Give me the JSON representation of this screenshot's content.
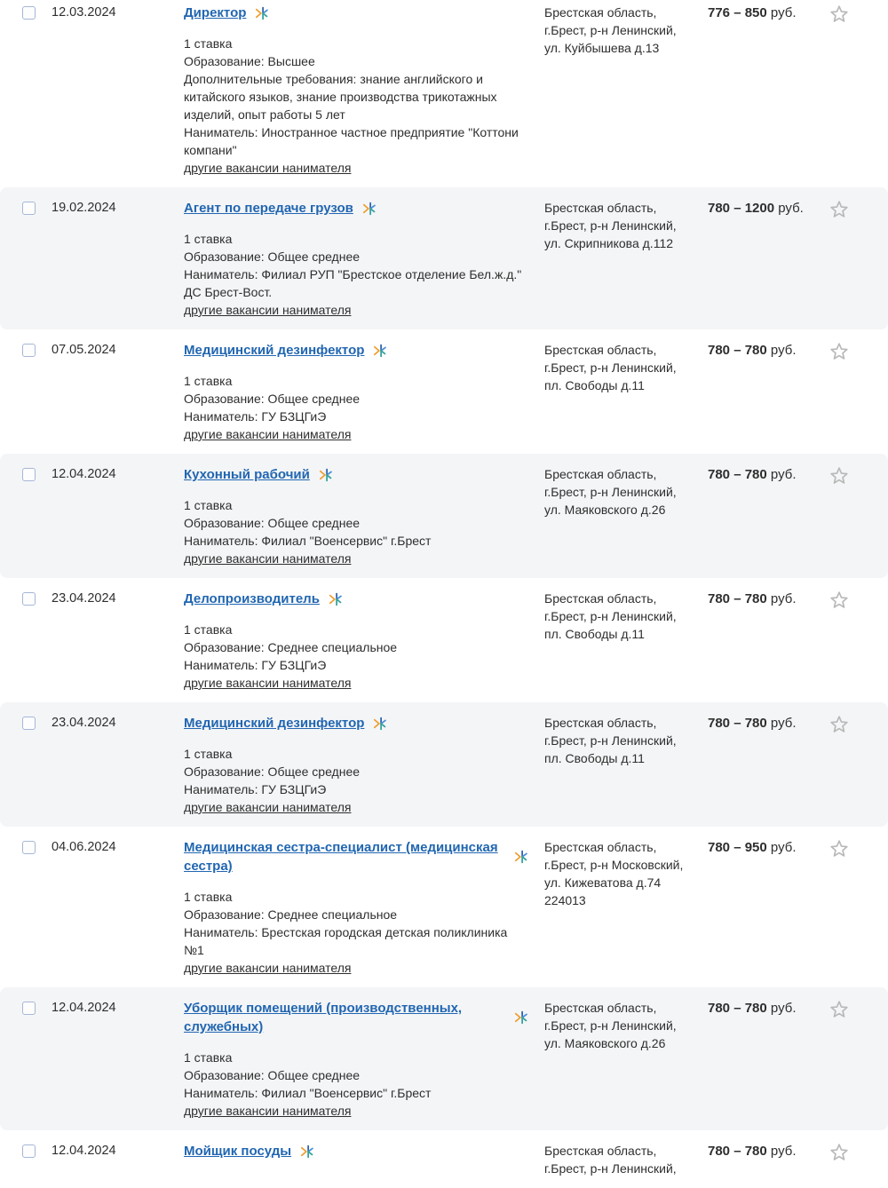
{
  "colors": {
    "link_blue": "#2166b1",
    "text": "#2e2e2e",
    "row_alt_background": "#f4f5f7",
    "star_outline": "#b9b9b9",
    "checkbox_border": "#a5b6d7",
    "icon_orange": "#ef9e2e",
    "icon_dark_blue": "#2f66ad",
    "icon_light_blue": "#4a90d9",
    "icon_teal": "#37a39e"
  },
  "labels": {
    "other_vacancies_link": "другие вакансии нанимателя",
    "currency": "руб."
  },
  "rows": [
    {
      "date": "12.03.2024",
      "title": "Директор",
      "details": [
        "1 ставка",
        "Образование: Высшее",
        "Дополнительные требования: знание английского и китайского языков, знание производства трикотажных изделий, опыт работы 5 лет",
        "Наниматель: Иностранное частное предприятие \"Коттони компани\""
      ],
      "location_lines": [
        "Брестская область,",
        "г.Брест, р-н Ленинский,",
        "ул. Куйбышева д.13"
      ],
      "salary_range": "776 – 850"
    },
    {
      "date": "19.02.2024",
      "title": "Агент по передаче грузов",
      "details": [
        "1 ставка",
        "Образование: Общее среднее",
        "Наниматель: Филиал РУП \"Брестское отделение Бел.ж.д.\" ДС Брест-Вост."
      ],
      "location_lines": [
        "Брестская область,",
        "г.Брест, р-н Ленинский,",
        "ул. Скрипникова д.112"
      ],
      "salary_range": "780 – 1200"
    },
    {
      "date": "07.05.2024",
      "title": "Медицинский дезинфектор",
      "details": [
        "1 ставка",
        "Образование: Общее среднее",
        "Наниматель: ГУ БЗЦГиЭ"
      ],
      "location_lines": [
        "Брестская область,",
        "г.Брест, р-н Ленинский,",
        "пл. Свободы д.11"
      ],
      "salary_range": "780 – 780"
    },
    {
      "date": "12.04.2024",
      "title": "Кухонный рабочий",
      "details": [
        "1 ставка",
        "Образование: Общее среднее",
        "Наниматель: Филиал \"Военсервис\" г.Брест"
      ],
      "location_lines": [
        "Брестская область,",
        "г.Брест, р-н Ленинский,",
        "ул. Маяковского д.26"
      ],
      "salary_range": "780 – 780"
    },
    {
      "date": "23.04.2024",
      "title": "Делопроизводитель",
      "details": [
        "1 ставка",
        "Образование: Среднее специальное",
        "Наниматель: ГУ БЗЦГиЭ"
      ],
      "location_lines": [
        "Брестская область,",
        "г.Брест, р-н Ленинский,",
        "пл. Свободы д.11"
      ],
      "salary_range": "780 – 780"
    },
    {
      "date": "23.04.2024",
      "title": "Медицинский дезинфектор",
      "details": [
        "1 ставка",
        "Образование: Общее среднее",
        "Наниматель: ГУ БЗЦГиЭ"
      ],
      "location_lines": [
        "Брестская область,",
        "г.Брест, р-н Ленинский,",
        "пл. Свободы д.11"
      ],
      "salary_range": "780 – 780"
    },
    {
      "date": "04.06.2024",
      "title": "Медицинская сестра-специалист (медицинская сестра)",
      "details": [
        "1 ставка",
        "Образование: Среднее специальное",
        "Наниматель: Брестская городская детская поликлиника №1"
      ],
      "location_lines": [
        "Брестская область,",
        "г.Брест, р-н Московский,",
        "ул. Кижеватова д.74",
        "224013"
      ],
      "salary_range": "780 – 950"
    },
    {
      "date": "12.04.2024",
      "title": "Уборщик помещений (производственных, служебных)",
      "details": [
        "1 ставка",
        "Образование: Общее среднее",
        "Наниматель: Филиал \"Военсервис\" г.Брест"
      ],
      "location_lines": [
        "Брестская область,",
        "г.Брест, р-н Ленинский,",
        "ул. Маяковского д.26"
      ],
      "salary_range": "780 – 780"
    },
    {
      "date": "12.04.2024",
      "title": "Мойщик посуды",
      "details": [],
      "location_lines": [
        "Брестская область,",
        "г.Брест, р-н Ленинский,"
      ],
      "salary_range": "780 – 780"
    }
  ]
}
